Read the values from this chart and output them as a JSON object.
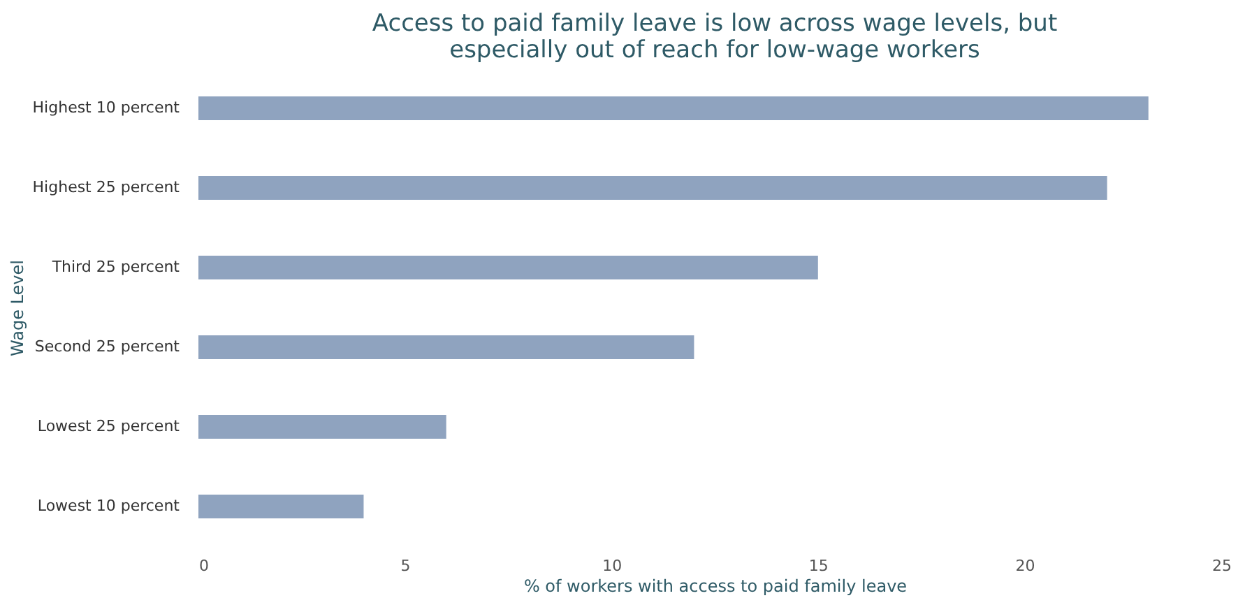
{
  "chart_data": {
    "type": "bar",
    "orientation": "horizontal",
    "title": "Access to paid family leave is low across wage levels, but\nespecially out of reach for low-wage workers",
    "categories": [
      "Highest 10 percent",
      "Highest 25 percent",
      "Third 25 percent",
      "Second 25 percent",
      "Lowest 25 percent",
      "Lowest 10 percent"
    ],
    "values": [
      23,
      22,
      15,
      12,
      6,
      4
    ],
    "color": "#8fa3bf",
    "xlim": [
      0,
      25
    ],
    "xticks": [
      0,
      5,
      10,
      15,
      20,
      25
    ],
    "xlabel": "% of workers with access to paid family leave",
    "ylabel": "Wage Level",
    "grid": false
  }
}
